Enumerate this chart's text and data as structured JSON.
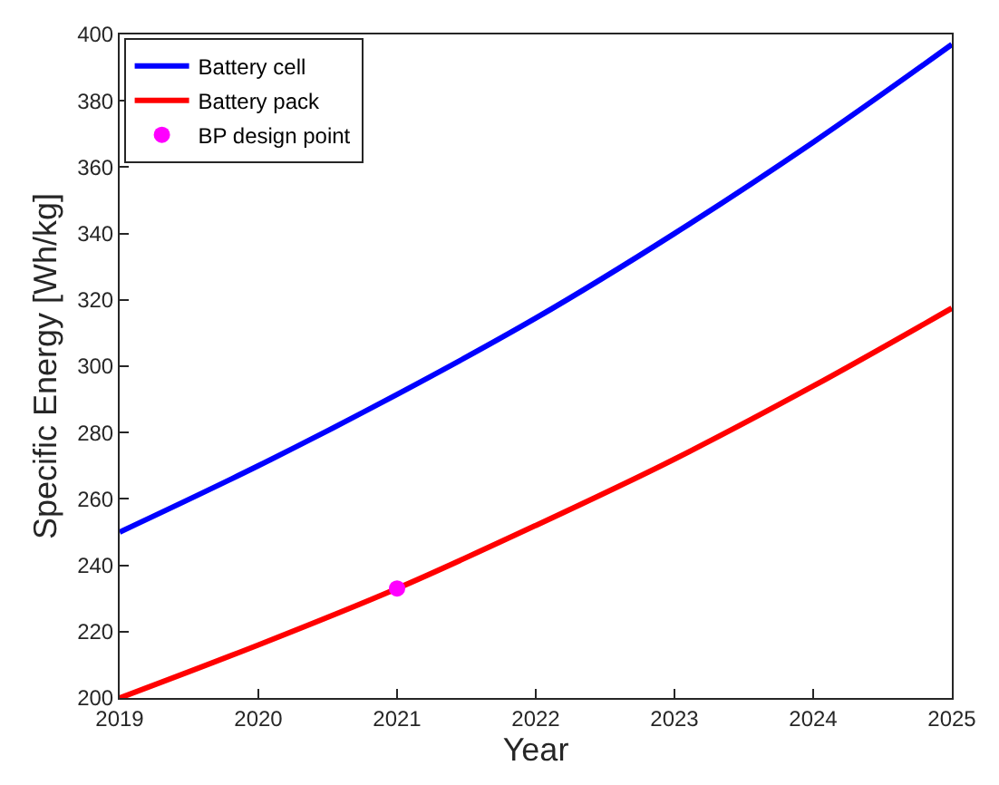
{
  "chart_data": {
    "type": "line",
    "xlabel": "Year",
    "ylabel": "Specific Energy [Wh/kg]",
    "x": [
      2019,
      2020,
      2021,
      2022,
      2023,
      2024,
      2025
    ],
    "series": [
      {
        "name": "Battery cell",
        "color": "#0000ff",
        "values": [
          250,
          270,
          291.5,
          314.5,
          340,
          367.5,
          397
        ]
      },
      {
        "name": "Battery pack",
        "color": "#ff0000",
        "values": [
          200,
          216,
          233,
          252,
          272,
          294,
          317.5
        ]
      },
      {
        "name": "BP design point",
        "type": "scatter",
        "color": "#ff00ff",
        "marker": "circle",
        "x": [
          2021
        ],
        "values": [
          233
        ]
      }
    ],
    "xlim": [
      2019,
      2025
    ],
    "xticks": [
      2019,
      2020,
      2021,
      2022,
      2023,
      2024,
      2025
    ],
    "ylim": [
      200,
      400
    ],
    "yticks": [
      200,
      220,
      240,
      260,
      280,
      300,
      320,
      340,
      360,
      380,
      400
    ],
    "legend": "top left"
  }
}
